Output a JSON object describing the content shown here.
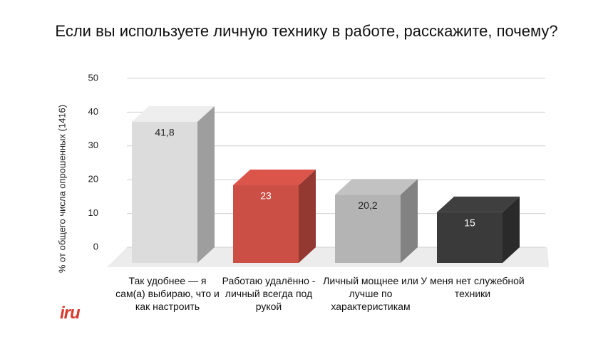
{
  "chart_data": {
    "type": "bar3d",
    "title": "Если вы используете личную технику в работе, расскажите, почему?",
    "y_label": "% от общего числа опрошенных (1416)",
    "categories": [
      "Так удобнее — я сам(а) выбираю, что и как настроить",
      "Работаю удалённо - личный всегда под рукой",
      "Личный мощнее или лучше по характеристикам",
      "У меня нет служебной техники"
    ],
    "values": [
      41.8,
      23,
      20.2,
      15
    ],
    "value_labels": [
      "41,8",
      "23",
      "20,2",
      "15"
    ],
    "colors": [
      "#dcdcdc",
      "#cc4f45",
      "#b4b4b4",
      "#3a3a3a"
    ],
    "label_colors": [
      "#222222",
      "#ffffff",
      "#222222",
      "#ffffff"
    ],
    "ylim": [
      0,
      50
    ],
    "yticks": [
      0,
      10,
      20,
      30,
      40,
      50
    ],
    "grid": true
  },
  "logo": "iru"
}
